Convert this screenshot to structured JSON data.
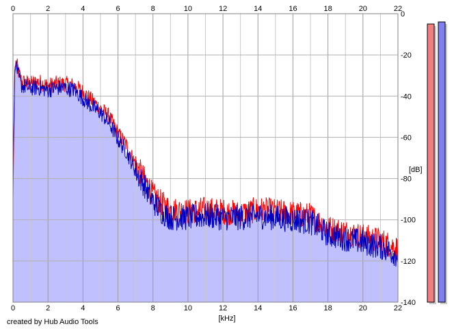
{
  "chart_data": {
    "type": "area",
    "title": "",
    "xlabel": "[kHz]",
    "ylabel": "[dB]",
    "xlim": [
      0,
      22
    ],
    "ylim": [
      -140,
      0
    ],
    "x_ticks": [
      "0",
      "2",
      "4",
      "6",
      "8",
      "10",
      "12",
      "14",
      "16",
      "18",
      "20",
      "22"
    ],
    "y_ticks": [
      "0",
      "-20",
      "-40",
      "-60",
      "-80",
      "-100",
      "-120",
      "-140"
    ],
    "grid": true,
    "series": [
      {
        "channel": "left",
        "color": "#ff0000",
        "x": [
          0,
          0.1,
          0.2,
          0.3,
          0.5,
          1,
          1.5,
          2,
          2.5,
          3,
          3.5,
          4,
          4.5,
          5,
          5.5,
          6,
          6.5,
          7,
          7.5,
          8,
          8.5,
          9,
          10,
          11,
          12,
          13,
          14,
          15,
          16,
          17,
          18,
          19,
          20,
          21,
          22
        ],
        "values": [
          -90,
          -26,
          -24,
          -28,
          -33,
          -34,
          -33,
          -35,
          -34,
          -34,
          -35,
          -38,
          -42,
          -46,
          -50,
          -58,
          -64,
          -73,
          -80,
          -88,
          -92,
          -95,
          -96,
          -95,
          -96,
          -97,
          -95,
          -96,
          -97,
          -98,
          -104,
          -106,
          -108,
          -110,
          -114
        ]
      },
      {
        "channel": "right",
        "color": "#0000c0",
        "fill": "#c0c0ff",
        "x": [
          0,
          0.1,
          0.2,
          0.3,
          0.5,
          1,
          1.5,
          2,
          2.5,
          3,
          3.5,
          4,
          4.5,
          5,
          5.5,
          6,
          6.5,
          7,
          7.5,
          8,
          8.5,
          9,
          10,
          11,
          12,
          13,
          14,
          15,
          16,
          17,
          18,
          19,
          20,
          21,
          22
        ],
        "values": [
          -80,
          -28,
          -25,
          -30,
          -35,
          -36,
          -36,
          -37,
          -36,
          -36,
          -37,
          -41,
          -45,
          -48,
          -53,
          -61,
          -67,
          -76,
          -83,
          -91,
          -96,
          -99,
          -99,
          -98,
          -99,
          -99,
          -98,
          -99,
          -100,
          -101,
          -107,
          -109,
          -111,
          -113,
          -117
        ]
      }
    ],
    "meters": [
      {
        "channel": "left",
        "level_db": -5,
        "color": "#f08080"
      },
      {
        "channel": "right",
        "level_db": -4,
        "color": "#8080f0"
      }
    ],
    "watermark": "created by Hub Audio Tools"
  }
}
